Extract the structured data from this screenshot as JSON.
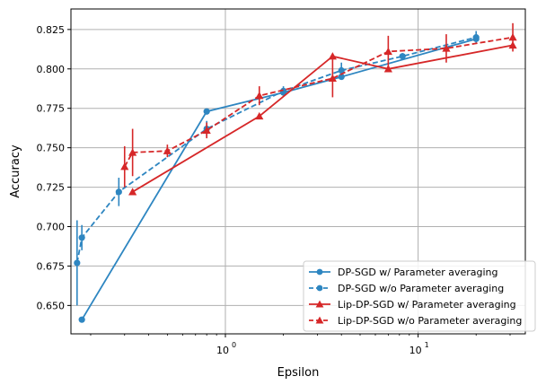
{
  "chart_data": {
    "type": "line",
    "title": "",
    "xlabel": "Epsilon",
    "ylabel": "Accuracy",
    "xscale": "log",
    "xlim": [
      0.158,
      36
    ],
    "ylim": [
      0.632,
      0.838
    ],
    "grid": true,
    "legend_position": "bottom-right",
    "x_ticks": [
      {
        "value": 1,
        "base": "10",
        "exp": "0"
      },
      {
        "value": 10,
        "base": "10",
        "exp": "1"
      }
    ],
    "y_ticks": [
      0.65,
      0.675,
      0.7,
      0.725,
      0.75,
      0.775,
      0.8,
      0.825
    ],
    "y_tick_labels": [
      "0.650",
      "0.675",
      "0.700",
      "0.725",
      "0.750",
      "0.775",
      "0.800",
      "0.825"
    ],
    "series": [
      {
        "name": "DP-SGD w/ Parameter averaging",
        "color": "#2e86c1",
        "linestyle": "solid",
        "marker": "circle",
        "points": [
          {
            "x": 0.18,
            "y": 0.641,
            "err": 0.0
          },
          {
            "x": 0.8,
            "y": 0.773,
            "err": 0.0
          },
          {
            "x": 2.0,
            "y": 0.785,
            "err": 0.0
          },
          {
            "x": 4.0,
            "y": 0.795,
            "err": 0.0
          },
          {
            "x": 20.0,
            "y": 0.819,
            "err": 0.0
          }
        ]
      },
      {
        "name": "DP-SGD w/o Parameter averaging",
        "color": "#2e86c1",
        "linestyle": "dashed",
        "marker": "circle",
        "points": [
          {
            "x": 0.17,
            "y": 0.677,
            "err": 0.027
          },
          {
            "x": 0.18,
            "y": 0.693,
            "err": 0.008
          },
          {
            "x": 0.28,
            "y": 0.722,
            "err": 0.009
          },
          {
            "x": 0.8,
            "y": 0.762,
            "err": 0.005
          },
          {
            "x": 2.0,
            "y": 0.786,
            "err": 0.003
          },
          {
            "x": 4.0,
            "y": 0.799,
            "err": 0.005
          },
          {
            "x": 8.3,
            "y": 0.808,
            "err": 0.002
          },
          {
            "x": 20.0,
            "y": 0.82,
            "err": 0.004
          }
        ]
      },
      {
        "name": "Lip-DP-SGD w/ Parameter averaging",
        "color": "#d62728",
        "linestyle": "solid",
        "marker": "triangle",
        "points": [
          {
            "x": 0.33,
            "y": 0.722,
            "err": 0.0
          },
          {
            "x": 1.5,
            "y": 0.77,
            "err": 0.0
          },
          {
            "x": 3.6,
            "y": 0.808,
            "err": 0.0
          },
          {
            "x": 7.0,
            "y": 0.8,
            "err": 0.0
          },
          {
            "x": 31.0,
            "y": 0.815,
            "err": 0.0
          }
        ]
      },
      {
        "name": "Lip-DP-SGD w/o Parameter averaging",
        "color": "#d62728",
        "linestyle": "dashed",
        "marker": "triangle",
        "points": [
          {
            "x": 0.3,
            "y": 0.738,
            "err": 0.013
          },
          {
            "x": 0.33,
            "y": 0.747,
            "err": 0.015
          },
          {
            "x": 0.5,
            "y": 0.748,
            "err": 0.004
          },
          {
            "x": 0.8,
            "y": 0.761,
            "err": 0.005
          },
          {
            "x": 1.5,
            "y": 0.783,
            "err": 0.006
          },
          {
            "x": 3.6,
            "y": 0.794,
            "err": 0.012
          },
          {
            "x": 7.0,
            "y": 0.811,
            "err": 0.01
          },
          {
            "x": 14.0,
            "y": 0.813,
            "err": 0.009
          },
          {
            "x": 31.0,
            "y": 0.82,
            "err": 0.009
          }
        ]
      }
    ]
  }
}
